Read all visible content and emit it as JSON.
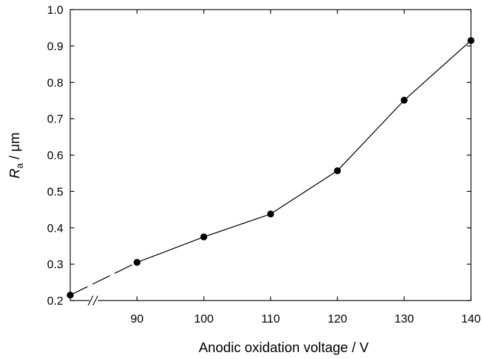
{
  "chart_data": {
    "type": "line",
    "xlabel": "Anodic oxidation voltage / V",
    "ylabel": {
      "symbol": "R",
      "subscript": "a",
      "unit": " / μm"
    },
    "x_ticks": [
      "90",
      "100",
      "110",
      "120",
      "130",
      "140"
    ],
    "y_ticks": [
      "0.2",
      "0.3",
      "0.4",
      "0.5",
      "0.6",
      "0.7",
      "0.8",
      "0.9",
      "1.0"
    ],
    "xlim": [
      80,
      140
    ],
    "ylim": [
      0.2,
      1.0
    ],
    "axis_break": true,
    "grid": false,
    "series": [
      {
        "x": [
          80,
          90,
          100,
          110,
          120,
          130,
          140
        ],
        "y": [
          0.215,
          0.305,
          0.375,
          0.438,
          0.557,
          0.751,
          0.915
        ],
        "color": "#000000",
        "marker": "circle"
      }
    ]
  }
}
